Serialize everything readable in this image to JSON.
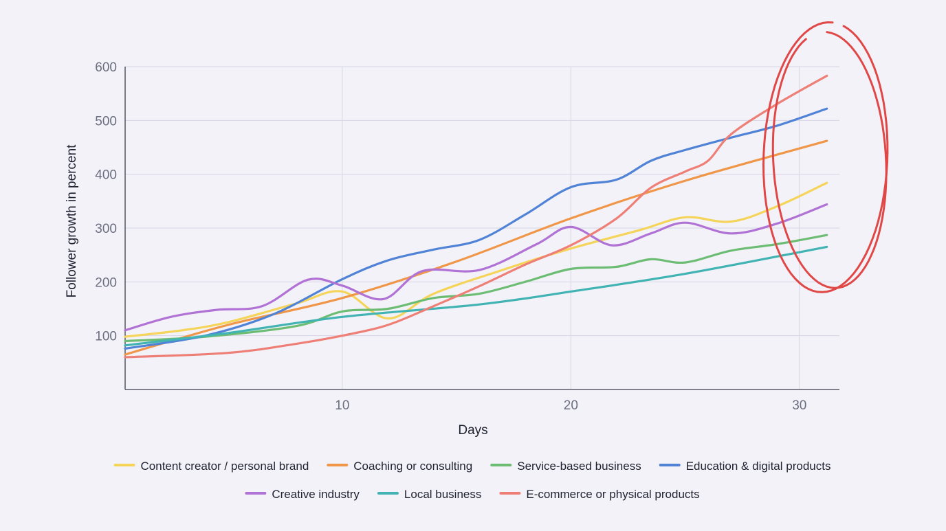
{
  "chart_data": {
    "type": "line",
    "title": "",
    "xlabel": "Days",
    "ylabel": "Follower growth in percent",
    "xlim": [
      0.5,
      31.75
    ],
    "ylim": [
      0,
      600
    ],
    "xticks": [
      10,
      20,
      30
    ],
    "yticks": [
      100,
      200,
      300,
      400,
      500,
      600
    ],
    "grid": true,
    "legend_position": "bottom",
    "series": [
      {
        "name": "Content creator / personal brand",
        "color": "#f5d45a",
        "x": [
          0.5,
          3,
          5,
          8,
          10,
          12,
          14,
          17,
          20,
          23,
          25,
          27,
          29,
          31.2
        ],
        "values": [
          98,
          110,
          125,
          160,
          182,
          132,
          178,
          222,
          262,
          296,
          320,
          312,
          340,
          384
        ]
      },
      {
        "name": "Coaching or consulting",
        "color": "#ef9648",
        "x": [
          0.5,
          5,
          10,
          15,
          20,
          25,
          31.2
        ],
        "values": [
          65,
          120,
          170,
          238,
          318,
          388,
          462
        ]
      },
      {
        "name": "Service-based business",
        "color": "#6cbd73",
        "x": [
          0.5,
          4,
          8,
          10,
          12,
          14,
          16,
          18,
          20,
          22,
          23.5,
          25,
          27,
          29,
          31.2
        ],
        "values": [
          90,
          98,
          118,
          145,
          150,
          170,
          178,
          200,
          224,
          228,
          242,
          236,
          258,
          270,
          287
        ]
      },
      {
        "name": "Education & digital products",
        "color": "#5083d6",
        "x": [
          0.5,
          4,
          7,
          10,
          12,
          14,
          16,
          18,
          20,
          22,
          23.5,
          25,
          27,
          29,
          31.2
        ],
        "values": [
          76,
          100,
          140,
          205,
          240,
          260,
          278,
          325,
          376,
          390,
          425,
          445,
          468,
          490,
          522
        ]
      },
      {
        "name": "Creative industry",
        "color": "#b072d4",
        "x": [
          0.5,
          2.5,
          4.5,
          6.5,
          8.5,
          10,
          11.8,
          13.5,
          16,
          18.5,
          20,
          21.8,
          23.5,
          25,
          27,
          29,
          31.2
        ],
        "values": [
          110,
          135,
          148,
          155,
          204,
          193,
          168,
          220,
          222,
          270,
          302,
          268,
          290,
          310,
          290,
          308,
          344
        ]
      },
      {
        "name": "Local business",
        "color": "#41b3b3",
        "x": [
          0.5,
          5,
          10,
          16,
          20,
          25,
          31.2
        ],
        "values": [
          82,
          105,
          135,
          158,
          182,
          215,
          265
        ]
      },
      {
        "name": "E-commerce or physical products",
        "color": "#ee7f77",
        "x": [
          0.5,
          5,
          8,
          10,
          12,
          14,
          16,
          18,
          20,
          22,
          23.5,
          25,
          26,
          27,
          29,
          31.2
        ],
        "values": [
          60,
          68,
          85,
          100,
          120,
          155,
          192,
          232,
          268,
          318,
          375,
          405,
          425,
          474,
          530,
          583
        ]
      }
    ]
  },
  "annotation": {
    "type": "hand-drawn-circle",
    "color": "#e04848"
  }
}
